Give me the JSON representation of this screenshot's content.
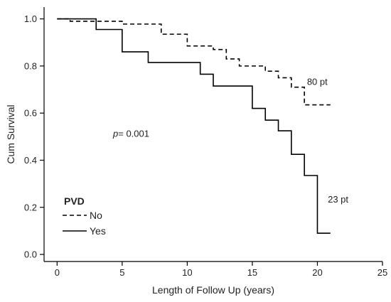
{
  "chart_data": {
    "type": "line",
    "xlabel": "Length of Follow Up (years)",
    "ylabel": "Cum Survival",
    "xlim": [
      -1,
      25
    ],
    "ylim": [
      -0.03,
      1.05
    ],
    "x_ticks": [
      0,
      5,
      10,
      15,
      20,
      25
    ],
    "y_ticks": [
      0.0,
      0.2,
      0.4,
      0.6,
      0.8,
      1.0
    ],
    "x_tick_labels": [
      "0",
      "5",
      "10",
      "15",
      "20",
      "25"
    ],
    "y_tick_labels": [
      "0.0",
      "0.2",
      "0.4",
      "0.6",
      "0.8",
      "1.0"
    ],
    "grid": false,
    "step": true,
    "legend": {
      "title": "PVD",
      "placement": "bottom-left",
      "entries": [
        "No",
        "Yes"
      ]
    },
    "series": [
      {
        "name": "No",
        "style": "dashed",
        "color": "#000000",
        "points": [
          [
            0,
            1.0
          ],
          [
            1,
            0.99
          ],
          [
            5,
            0.978
          ],
          [
            8,
            0.935
          ],
          [
            10,
            0.885
          ],
          [
            12,
            0.87
          ],
          [
            13,
            0.83
          ],
          [
            14,
            0.8
          ],
          [
            16,
            0.778
          ],
          [
            17,
            0.75
          ],
          [
            18,
            0.71
          ],
          [
            19,
            0.635
          ],
          [
            21,
            0.635
          ]
        ]
      },
      {
        "name": "Yes",
        "style": "solid",
        "color": "#000000",
        "points": [
          [
            0,
            1.0
          ],
          [
            3,
            0.955
          ],
          [
            5,
            0.86
          ],
          [
            7,
            0.815
          ],
          [
            11,
            0.765
          ],
          [
            12,
            0.715
          ],
          [
            15,
            0.62
          ],
          [
            16,
            0.57
          ],
          [
            17,
            0.525
          ],
          [
            18,
            0.425
          ],
          [
            19,
            0.335
          ],
          [
            20,
            0.09
          ],
          [
            21,
            0.09
          ]
        ]
      }
    ],
    "annotations": {
      "no_count": "80 pt",
      "yes_count": "23 pt",
      "p_label": "p",
      "p_value": "= 0.001"
    }
  }
}
